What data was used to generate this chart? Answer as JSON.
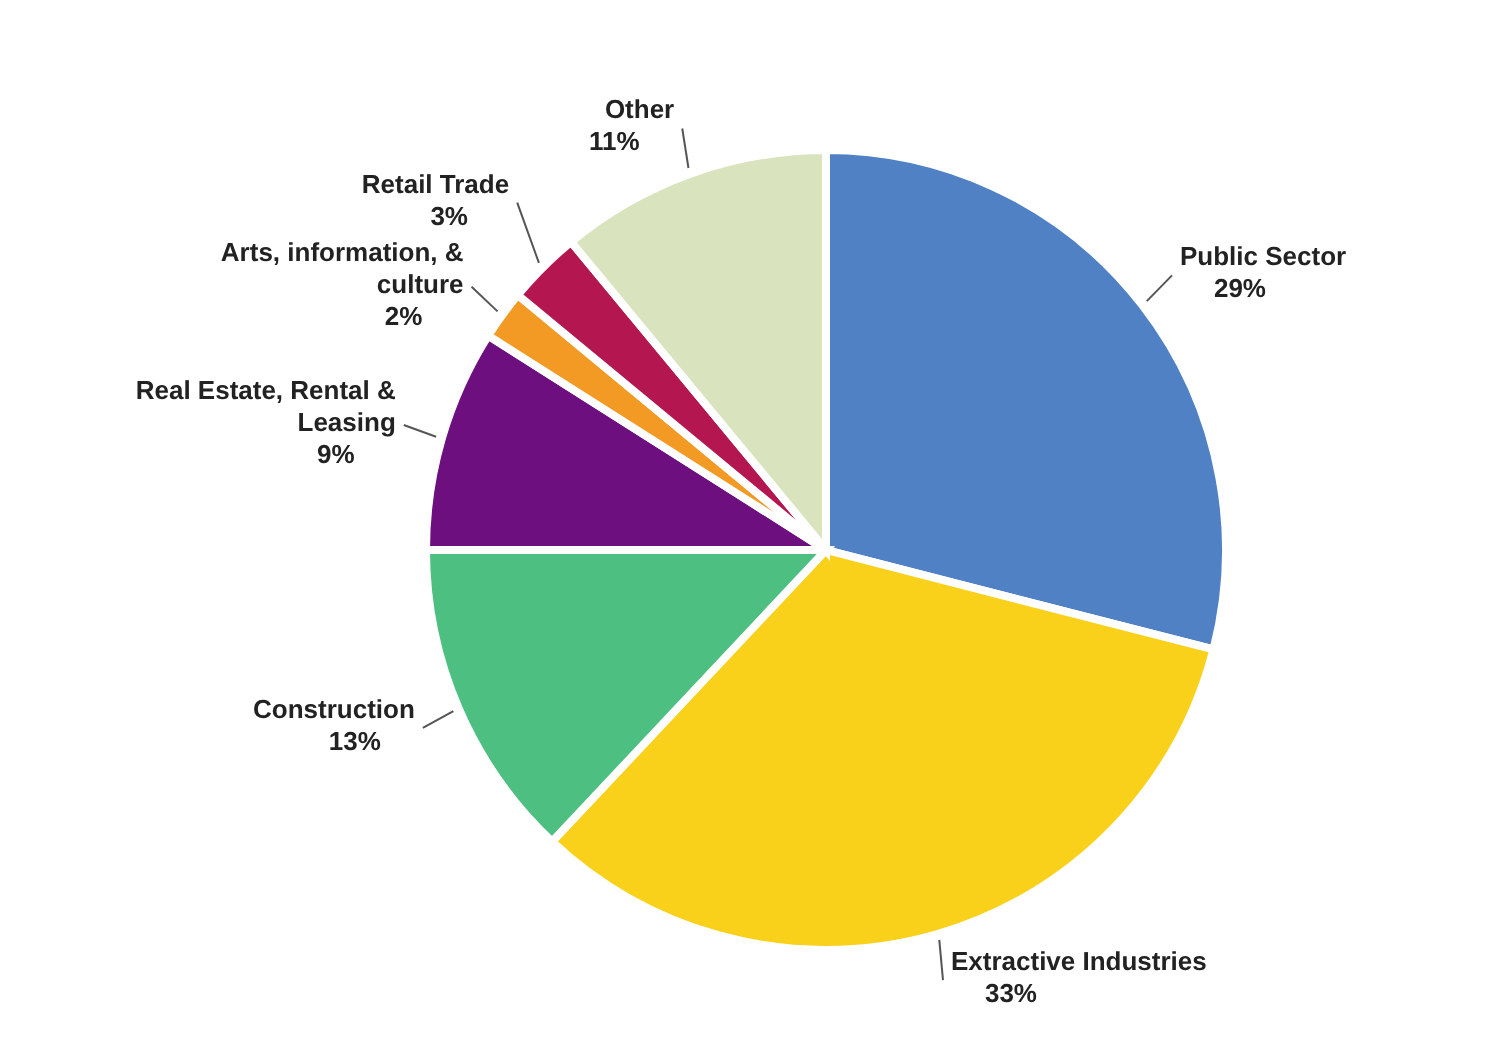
{
  "chart_data": {
    "type": "pie",
    "categories": [
      "Public Sector",
      "Extractive Industries",
      "Construction",
      "Real Estate, Rental & Leasing",
      "Arts, information, & culture",
      "Retail Trade",
      "Other"
    ],
    "values": [
      29,
      33,
      13,
      9,
      2,
      3,
      11
    ],
    "value_labels": [
      "29%",
      "33%",
      "13%",
      "9%",
      "2%",
      "3%",
      "11%"
    ],
    "colors": [
      "#4f81c4",
      "#f9d11b",
      "#4dbf80",
      "#6d0f7e",
      "#f39a25",
      "#b4174f",
      "#d9e4bf"
    ],
    "legend": false
  }
}
